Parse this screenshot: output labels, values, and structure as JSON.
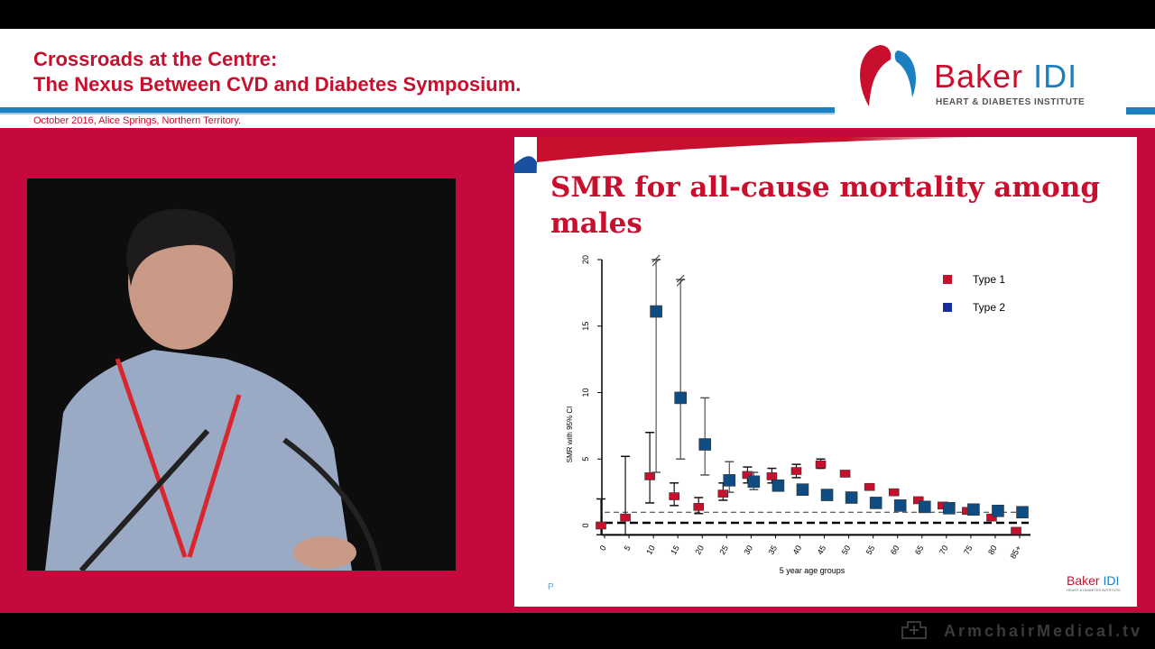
{
  "header": {
    "title_line1": "Crossroads at the Centre:",
    "title_line2": "The Nexus Between CVD and Diabetes Symposium.",
    "subtitle": "October 2016, Alice Springs, Northern Territory.",
    "logo_main": "Baker",
    "logo_accent": "IDI",
    "logo_sub": "HEART & DIABETES INSTITUTE"
  },
  "slide": {
    "title": "SMR for all-cause mortality among males",
    "footer_letter": "P",
    "footer_logo_main": "Baker",
    "footer_logo_accent": "IDI",
    "footer_logo_sub": "HEART & DIABETES INSTITUTE"
  },
  "watermark": "ArmchairMedical.tv",
  "colors": {
    "crimson": "#c40a3c",
    "blue": "#1b7fc0",
    "type1": "#c8102e",
    "type2": "#0f4c81"
  },
  "chart_data": {
    "type": "scatter",
    "title": "SMR for all-cause mortality among males",
    "xlabel": "5 year age groups",
    "ylabel": "SMR with 95% CI",
    "ylim": [
      -0.7,
      20
    ],
    "yticks": [
      "0",
      "5",
      "10",
      "15",
      "20"
    ],
    "categories": [
      "0",
      "5",
      "10",
      "15",
      "20",
      "25",
      "30",
      "35",
      "40",
      "45",
      "50",
      "55",
      "60",
      "65",
      "70",
      "75",
      "80",
      "85+"
    ],
    "legend_position": "top-right",
    "reference_lines": [
      1,
      0.2
    ],
    "series": [
      {
        "name": "Type 1",
        "values": [
          0,
          0.6,
          3.7,
          2.2,
          1.4,
          2.4,
          3.8,
          3.7,
          4.1,
          4.6,
          3.9,
          2.9,
          2.5,
          1.9,
          1.5,
          1.1,
          0.6,
          -0.4
        ],
        "ci_low": [
          -0.7,
          -0.7,
          1.7,
          1.5,
          0.9,
          1.9,
          3.2,
          3.2,
          3.6,
          4.3,
          3.8,
          null,
          null,
          null,
          null,
          null,
          null,
          null
        ],
        "ci_high": [
          2,
          5.2,
          7,
          3.2,
          2.1,
          3.2,
          4.4,
          4.3,
          4.6,
          5.0,
          4.1,
          null,
          null,
          null,
          null,
          null,
          null,
          null
        ]
      },
      {
        "name": "Type 2",
        "values": [
          null,
          null,
          16.1,
          9.6,
          6.1,
          3.4,
          3.3,
          3.0,
          2.7,
          2.3,
          2.1,
          1.7,
          1.5,
          1.4,
          1.3,
          1.2,
          1.1,
          1.0
        ],
        "ci_low": [
          null,
          null,
          4.0,
          5.0,
          3.8,
          2.5,
          2.7,
          null,
          null,
          null,
          null,
          null,
          null,
          null,
          null,
          null,
          null,
          null
        ],
        "ci_high": [
          null,
          null,
          20,
          18.5,
          9.6,
          4.8,
          4.0,
          null,
          null,
          null,
          null,
          null,
          null,
          null,
          null,
          null,
          null,
          null
        ]
      }
    ]
  }
}
